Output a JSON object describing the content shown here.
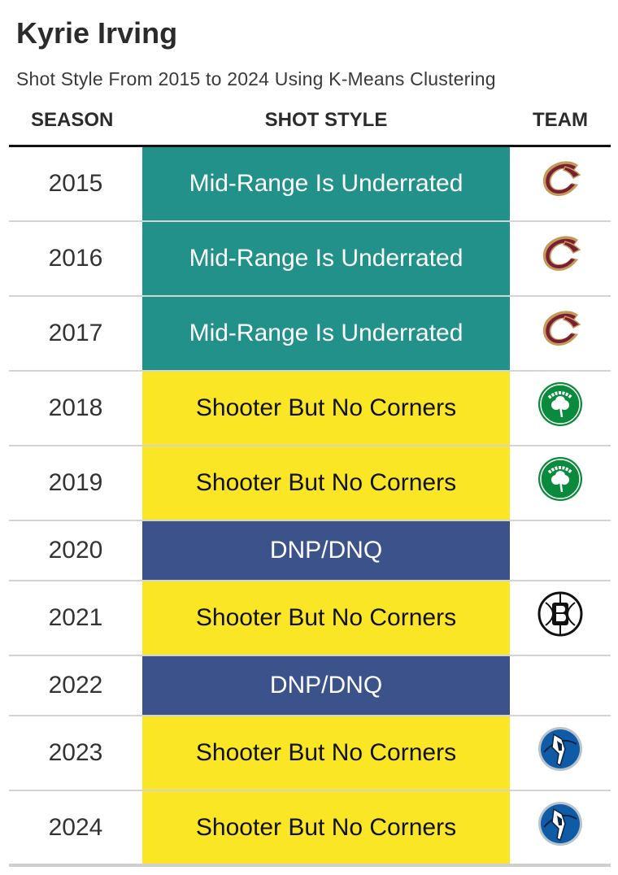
{
  "title": "Kyrie Irving",
  "subtitle": "Shot Style From 2015 to 2024 Using K-Means Clustering",
  "headers": {
    "season": "SEASON",
    "style": "SHOT STYLE",
    "team": "TEAM"
  },
  "colors": {
    "Mid-Range Is Underrated": {
      "bg": "#22918a",
      "fg": "#ffffff"
    },
    "Shooter But No Corners": {
      "bg": "#fbe625",
      "fg": "#111111"
    },
    "DNP/DNQ": {
      "bg": "#3c528a",
      "fg": "#ffffff"
    }
  },
  "chart_data": {
    "type": "table",
    "columns": [
      "SEASON",
      "SHOT STYLE",
      "TEAM"
    ],
    "rows": [
      {
        "season": "2015",
        "style": "Mid-Range Is Underrated",
        "team": "cavaliers-logo-icon"
      },
      {
        "season": "2016",
        "style": "Mid-Range Is Underrated",
        "team": "cavaliers-logo-icon"
      },
      {
        "season": "2017",
        "style": "Mid-Range Is Underrated",
        "team": "cavaliers-logo-icon"
      },
      {
        "season": "2018",
        "style": "Shooter But No Corners",
        "team": "celtics-logo-icon"
      },
      {
        "season": "2019",
        "style": "Shooter But No Corners",
        "team": "celtics-logo-icon"
      },
      {
        "season": "2020",
        "style": "DNP/DNQ",
        "team": ""
      },
      {
        "season": "2021",
        "style": "Shooter But No Corners",
        "team": "nets-logo-icon"
      },
      {
        "season": "2022",
        "style": "DNP/DNQ",
        "team": ""
      },
      {
        "season": "2023",
        "style": "Shooter But No Corners",
        "team": "mavericks-logo-icon"
      },
      {
        "season": "2024",
        "style": "Shooter But No Corners",
        "team": "mavericks-logo-icon"
      }
    ]
  }
}
